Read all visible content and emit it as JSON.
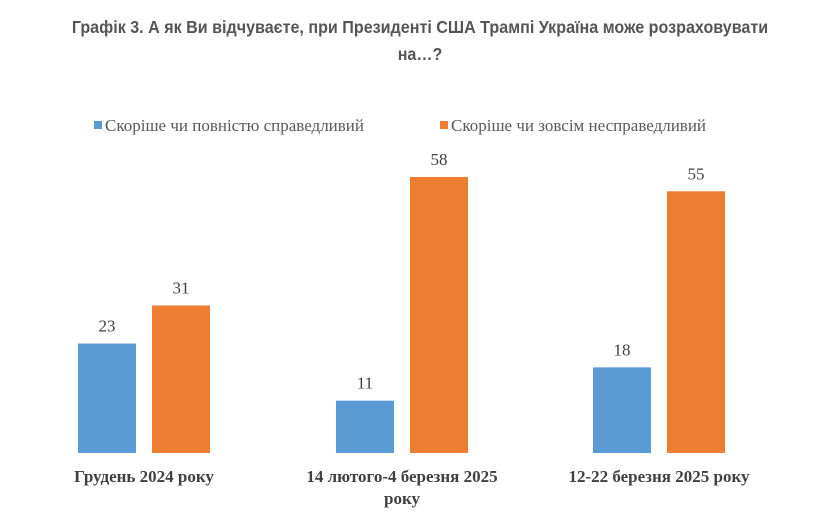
{
  "chart_data": {
    "type": "bar",
    "title": "Графік 3. А як Ви відчуваєте, при Президенті США Трампі Україна може розраховувати на…?",
    "categories": [
      [
        "Грудень 2024 року"
      ],
      [
        "14 лютого-4 березня 2025",
        "року"
      ],
      [
        "12-22 березня 2025 року"
      ]
    ],
    "series": [
      {
        "name": "Скоріше чи повністю справедливий",
        "values": [
          23,
          11,
          18
        ],
        "color": "#5b9bd5"
      },
      {
        "name": "Скоріше чи зовсім несправедливий",
        "values": [
          31,
          58,
          55
        ],
        "color": "#ed7d31"
      }
    ],
    "ylim": [
      0,
      58
    ],
    "grid": false,
    "legend": "top"
  }
}
